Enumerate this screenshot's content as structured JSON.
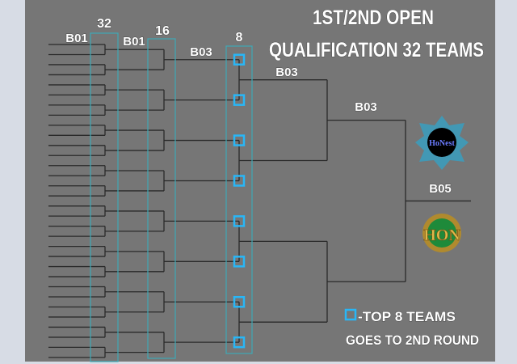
{
  "title": {
    "line1": "1ST/2ND OPEN",
    "line2": "QUALIFICATION 32 TEAMS"
  },
  "columns": {
    "r32_format": "B01",
    "r32_count": "32",
    "r16_format": "B01",
    "r16_count": "16",
    "r8_format": "B03",
    "r8_count": "8",
    "qf_format": "B03",
    "sf_format": "B03",
    "final_format": "B05"
  },
  "legend": {
    "line1": "-TOP 8 TEAMS",
    "line2": "GOES TO 2ND ROUND"
  },
  "logos": {
    "top": "HoNest",
    "bottom": "HON"
  },
  "colors": {
    "panel": "#767676",
    "accent": "#29b6f6",
    "column_box": "#3fa9b5",
    "line": "#2a2a2a",
    "background": "#d7dce5"
  }
}
